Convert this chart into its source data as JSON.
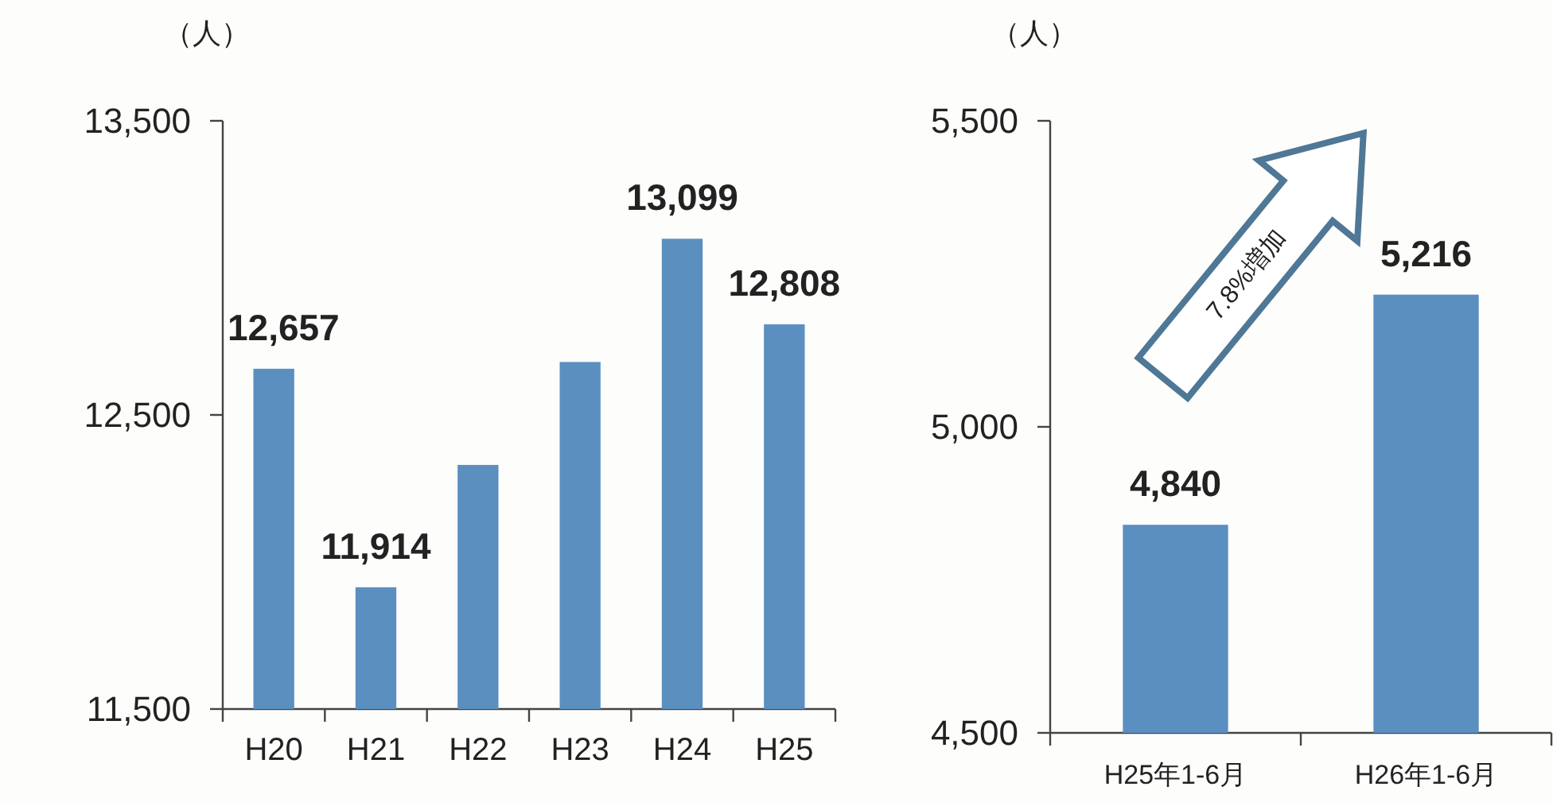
{
  "chart_data": [
    {
      "type": "bar",
      "ylabel": "（人）",
      "categories": [
        "H20",
        "H21",
        "H22",
        "H23",
        "H24",
        "H25"
      ],
      "values": [
        12657,
        11914,
        12330,
        12680,
        13099,
        12808
      ],
      "value_labels": [
        "12,657",
        "11,914",
        null,
        null,
        "13,099",
        "12,808"
      ],
      "color": "#5b8fc0",
      "ylim": [
        11500,
        13500
      ],
      "yticks": [
        {
          "value": 11500,
          "label": "11,500"
        },
        {
          "value": 12500,
          "label": "12,500"
        },
        {
          "value": 13500,
          "label": "13,500"
        }
      ],
      "grid": false
    },
    {
      "type": "bar",
      "ylabel": "（人）",
      "categories": [
        "H25年1-6月",
        "H26年1-6月"
      ],
      "values": [
        4840,
        5216
      ],
      "value_labels": [
        "4,840",
        "5,216"
      ],
      "color": "#5b8fc0",
      "ylim": [
        4500,
        5500
      ],
      "yticks": [
        {
          "value": 4500,
          "label": "4,500"
        },
        {
          "value": 5000,
          "label": "5,000"
        },
        {
          "value": 5500,
          "label": "5,500"
        }
      ],
      "grid": false,
      "annotations": [
        "7.8%増加"
      ]
    }
  ]
}
